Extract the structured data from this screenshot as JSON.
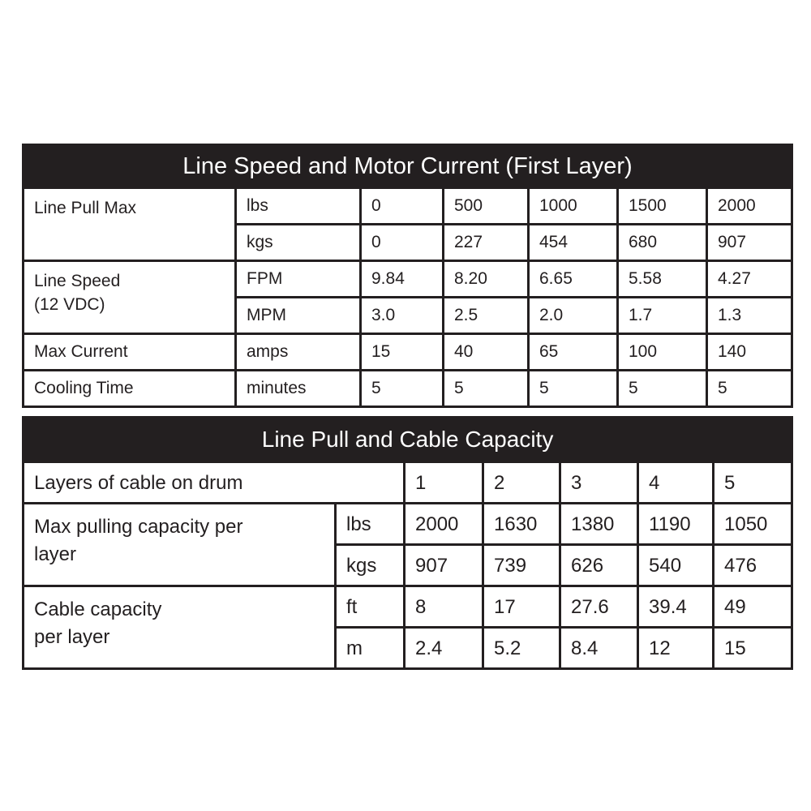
{
  "table1": {
    "title": "Line Speed and Motor Current (First Layer)",
    "rows": [
      {
        "label": "Line Pull Max",
        "unit": "lbs",
        "values": [
          "0",
          "500",
          "1000",
          "1500",
          "2000"
        ]
      },
      {
        "label": "",
        "unit": "kgs",
        "values": [
          "0",
          "227",
          "454",
          "680",
          "907"
        ]
      },
      {
        "label": "Line Speed\n(12 VDC)",
        "unit": "FPM",
        "values": [
          "9.84",
          "8.20",
          "6.65",
          "5.58",
          "4.27"
        ]
      },
      {
        "label": "",
        "unit": "MPM",
        "values": [
          "3.0",
          "2.5",
          "2.0",
          "1.7",
          "1.3"
        ]
      },
      {
        "label": "Max Current",
        "unit": "amps",
        "values": [
          "15",
          "40",
          "65",
          "100",
          "140"
        ]
      },
      {
        "label": "Cooling Time",
        "unit": "minutes",
        "values": [
          "5",
          "5",
          "5",
          "5",
          "5"
        ]
      }
    ]
  },
  "table2": {
    "title": "Line Pull and Cable Capacity",
    "layers_label": "Layers of cable on drum",
    "layers": [
      "1",
      "2",
      "3",
      "4",
      "5"
    ],
    "rows": [
      {
        "label": "Max pulling capacity per\nlayer",
        "unit": "lbs",
        "values": [
          "2000",
          "1630",
          "1380",
          "1190",
          "1050"
        ]
      },
      {
        "label": "",
        "unit": "kgs",
        "values": [
          "907",
          "739",
          "626",
          "540",
          "476"
        ]
      },
      {
        "label": "Cable capacity\n per layer",
        "unit": "ft",
        "values": [
          "8",
          "17",
          "27.6",
          "39.4",
          "49"
        ]
      },
      {
        "label": "",
        "unit": "m",
        "values": [
          "2.4",
          "5.2",
          "8.4",
          "12",
          "15"
        ]
      }
    ]
  }
}
